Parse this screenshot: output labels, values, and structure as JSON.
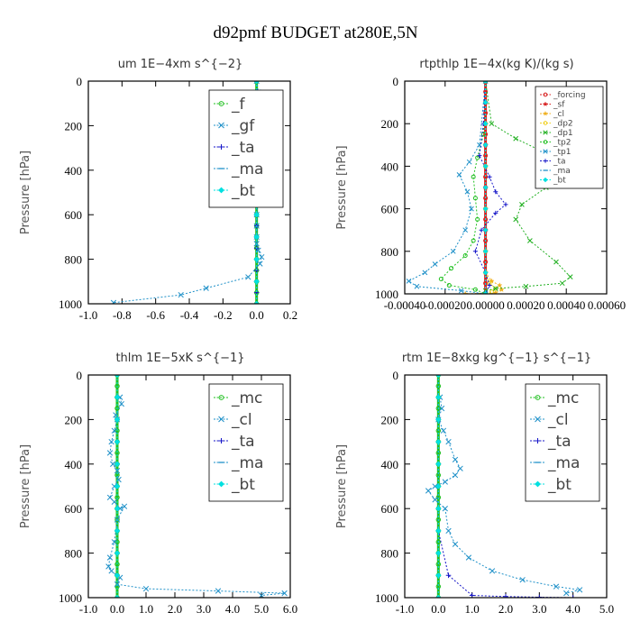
{
  "figure_title": "d92pmf  BUDGET at280E,5N",
  "chart_data": [
    {
      "type": "line",
      "title": "um   1E−4xm s^{−2}",
      "ylabel": "Pressure [hPa]",
      "xlim": [
        -1.0,
        0.2
      ],
      "ylim": [
        1000,
        0
      ],
      "xticks": [
        -1.0,
        -0.8,
        -0.6,
        -0.4,
        -0.2,
        0.0,
        0.2
      ],
      "xtick_labels": [
        "-1.0",
        "-0.8",
        "-0.6",
        "-0.4",
        "-0.2",
        "0.0",
        "0.2"
      ],
      "yticks": [
        0,
        200,
        400,
        600,
        800,
        1000
      ],
      "ytick_labels": [
        "0",
        "200",
        "400",
        "600",
        "800",
        "1000"
      ],
      "legend_position": "top-right",
      "legend_font_size": "large",
      "series": [
        {
          "name": "_f",
          "color": "#22c022",
          "marker": "circle",
          "x": [
            0,
            0,
            0,
            0,
            0,
            0,
            0,
            0,
            0,
            0,
            0,
            0,
            0,
            0,
            0,
            0,
            0,
            0,
            0,
            0,
            0
          ],
          "y": [
            0,
            50,
            100,
            150,
            200,
            250,
            300,
            350,
            400,
            450,
            500,
            550,
            600,
            650,
            700,
            750,
            800,
            850,
            900,
            950,
            1000
          ]
        },
        {
          "name": "_gf",
          "color": "#1e90c8",
          "marker": "x",
          "x": [
            0.0,
            0.01,
            0.02,
            0.05,
            0.07,
            0.03,
            0.02,
            0.01,
            0.01,
            0.01,
            0.0,
            0.0,
            0.0,
            0.0,
            0.01,
            0.03,
            0.02,
            -0.05,
            -0.3,
            -0.45,
            -0.85
          ],
          "y": [
            0,
            50,
            100,
            150,
            180,
            200,
            250,
            300,
            400,
            500,
            600,
            650,
            700,
            730,
            760,
            790,
            820,
            880,
            930,
            960,
            995
          ]
        },
        {
          "name": "_ta",
          "color": "#1515c8",
          "marker": "plus",
          "x": [
            0,
            0,
            0,
            0,
            0,
            0,
            0,
            0,
            0,
            0,
            0,
            0,
            0,
            0,
            0,
            0,
            0,
            0,
            0,
            0,
            0
          ],
          "y": [
            0,
            50,
            100,
            150,
            200,
            250,
            300,
            350,
            400,
            450,
            500,
            550,
            600,
            650,
            700,
            750,
            800,
            850,
            900,
            950,
            1000
          ]
        },
        {
          "name": "_ma",
          "color": "#1e90c8",
          "marker": "dash",
          "x": [
            0,
            0,
            0,
            0,
            0,
            0,
            0,
            0,
            0,
            0,
            0
          ],
          "y": [
            0,
            100,
            200,
            300,
            400,
            500,
            600,
            700,
            800,
            900,
            1000
          ]
        },
        {
          "name": "_bt",
          "color": "#00e0e0",
          "marker": "diamond",
          "x": [
            0,
            0,
            0,
            0,
            0,
            0,
            0,
            0,
            0,
            0,
            0
          ],
          "y": [
            0,
            100,
            200,
            300,
            400,
            500,
            600,
            700,
            800,
            900,
            1000
          ]
        }
      ]
    },
    {
      "type": "line",
      "title": "rtpthlp   1E−4x(kg K)/(kg s)",
      "ylabel": "Pressure [hPa]",
      "xlim": [
        -0.0004,
        0.0006
      ],
      "ylim": [
        1000,
        0
      ],
      "xticks": [
        -0.0004,
        -0.0002,
        0.0,
        0.0002,
        0.0004,
        0.0006
      ],
      "xtick_labels": [
        "-0.00040",
        "-0.00020",
        "0.00000",
        "0.00020",
        "0.00040",
        "0.00060"
      ],
      "yticks": [
        0,
        200,
        400,
        600,
        800,
        1000
      ],
      "ytick_labels": [
        "0",
        "200",
        "400",
        "600",
        "800",
        "1000"
      ],
      "legend_position": "top-right",
      "legend_font_size": "small",
      "series": [
        {
          "name": "_forcing",
          "color": "#d82020",
          "marker": "circle",
          "x": [
            0,
            0,
            0,
            0,
            0,
            0,
            0,
            0,
            0,
            0,
            0,
            0,
            0,
            0,
            0,
            0,
            0,
            0,
            0,
            0,
            0
          ],
          "y": [
            0,
            50,
            100,
            150,
            200,
            250,
            300,
            350,
            400,
            450,
            500,
            550,
            600,
            650,
            700,
            750,
            800,
            850,
            900,
            950,
            1000
          ]
        },
        {
          "name": "_sf",
          "color": "#d82020",
          "marker": "star",
          "x": [
            0,
            0,
            0,
            0,
            0,
            0,
            0,
            0,
            0,
            0,
            0
          ],
          "y": [
            0,
            100,
            200,
            300,
            400,
            500,
            600,
            700,
            800,
            900,
            1000
          ]
        },
        {
          "name": "_cl",
          "color": "#f0b020",
          "marker": "star",
          "x": [
            0,
            0,
            0,
            0,
            0,
            0,
            3e-05,
            7e-05,
            8e-05,
            5e-05,
            -0.0001
          ],
          "y": [
            0,
            200,
            400,
            600,
            800,
            900,
            940,
            960,
            980,
            995,
            1000
          ]
        },
        {
          "name": "_dp2",
          "color": "#f0d020",
          "marker": "circle",
          "x": [
            0,
            0,
            0,
            0,
            0,
            0,
            2e-05,
            5e-05,
            3e-05,
            0
          ],
          "y": [
            0,
            200,
            400,
            600,
            800,
            900,
            950,
            975,
            990,
            1000
          ]
        },
        {
          "name": "_dp1",
          "color": "#22b022",
          "marker": "x",
          "x": [
            0,
            3e-05,
            0.00015,
            0.00028,
            0.00036,
            0.00042,
            0.0003,
            0.00018,
            0.00015,
            0.00022,
            0.00035,
            0.00042,
            0.00038,
            0.0002,
            5e-05,
            0
          ],
          "y": [
            0,
            200,
            270,
            330,
            380,
            430,
            500,
            580,
            650,
            750,
            850,
            920,
            950,
            965,
            975,
            985
          ]
        },
        {
          "name": "_tp2",
          "color": "#22c022",
          "marker": "circle",
          "x": [
            0,
            -1e-05,
            -4e-05,
            -6e-05,
            -5e-05,
            -4e-05,
            -6e-05,
            -0.0001,
            -0.00017,
            -0.00022,
            -0.00018,
            -5e-05,
            0
          ],
          "y": [
            0,
            250,
            360,
            450,
            550,
            650,
            750,
            820,
            880,
            930,
            960,
            980,
            1000
          ]
        },
        {
          "name": "_tp1",
          "color": "#1e90c8",
          "marker": "x",
          "x": [
            0,
            -3e-05,
            -8e-05,
            -0.00013,
            -9e-05,
            -7e-05,
            -0.0001,
            -0.00016,
            -0.00025,
            -0.0003,
            -0.00038,
            -0.00034,
            -0.00012,
            0
          ],
          "y": [
            0,
            300,
            380,
            440,
            520,
            600,
            700,
            800,
            860,
            900,
            940,
            965,
            985,
            1000
          ]
        },
        {
          "name": "_ta",
          "color": "#1515c8",
          "marker": "plus",
          "x": [
            0,
            -1e-05,
            -3e-05,
            2e-05,
            5e-05,
            0.0001,
            5e-05,
            -2e-05,
            -5e-05,
            0,
            2e-05,
            0
          ],
          "y": [
            0,
            200,
            350,
            450,
            520,
            580,
            620,
            700,
            800,
            900,
            960,
            1000
          ]
        },
        {
          "name": "_ma",
          "color": "#1e90c8",
          "marker": "dash",
          "x": [
            0,
            0,
            0,
            0,
            0,
            0,
            0,
            0,
            0,
            0,
            0
          ],
          "y": [
            0,
            100,
            200,
            300,
            400,
            500,
            600,
            700,
            800,
            900,
            1000
          ]
        },
        {
          "name": "_bt",
          "color": "#00e0e0",
          "marker": "diamond",
          "x": [
            0,
            0,
            0,
            0,
            0,
            0,
            0,
            0,
            0,
            0,
            0
          ],
          "y": [
            0,
            100,
            200,
            300,
            400,
            500,
            600,
            700,
            800,
            900,
            1000
          ]
        }
      ]
    },
    {
      "type": "line",
      "title": "thlm   1E−5xK s^{−1}",
      "ylabel": "Pressure [hPa]",
      "xlim": [
        -1.0,
        6.0
      ],
      "ylim": [
        1000,
        0
      ],
      "xticks": [
        -1.0,
        0.0,
        1.0,
        2.0,
        3.0,
        4.0,
        5.0,
        6.0
      ],
      "xtick_labels": [
        "-1.0",
        "0.0",
        "1.0",
        "2.0",
        "3.0",
        "4.0",
        "5.0",
        "6.0"
      ],
      "yticks": [
        0,
        200,
        400,
        600,
        800,
        1000
      ],
      "ytick_labels": [
        "0",
        "200",
        "400",
        "600",
        "800",
        "1000"
      ],
      "legend_position": "top-right",
      "legend_font_size": "large",
      "series": [
        {
          "name": "_mc",
          "color": "#22c022",
          "marker": "circle",
          "x": [
            0,
            0,
            0,
            0,
            0,
            0,
            0,
            0,
            0,
            0,
            0,
            0,
            0,
            0,
            0,
            0,
            0,
            0,
            0,
            0,
            0
          ],
          "y": [
            0,
            50,
            100,
            150,
            200,
            250,
            300,
            350,
            400,
            450,
            500,
            550,
            600,
            650,
            700,
            750,
            800,
            850,
            900,
            950,
            1000
          ]
        },
        {
          "name": "_cl",
          "color": "#1e90c8",
          "marker": "x",
          "x": [
            0.1,
            0.15,
            -0.05,
            0.0,
            -0.1,
            -0.2,
            -0.25,
            -0.15,
            0.0,
            0.05,
            -0.1,
            -0.25,
            -0.1,
            0.1,
            0.25,
            0.0,
            -0.1,
            -0.25,
            -0.3,
            -0.2,
            0.1,
            0.0,
            1.0,
            3.5,
            5.8,
            5.0
          ],
          "y": [
            100,
            130,
            180,
            200,
            250,
            300,
            350,
            400,
            430,
            470,
            500,
            550,
            570,
            600,
            590,
            650,
            750,
            820,
            860,
            880,
            910,
            940,
            960,
            970,
            980,
            990
          ]
        },
        {
          "name": "_ta",
          "color": "#1515c8",
          "marker": "plus",
          "x": [
            0,
            0,
            0,
            0,
            0,
            0,
            0,
            0,
            0,
            0,
            0
          ],
          "y": [
            0,
            100,
            200,
            300,
            400,
            500,
            600,
            700,
            800,
            900,
            1000
          ]
        },
        {
          "name": "_ma",
          "color": "#1e90c8",
          "marker": "dash",
          "x": [
            0,
            0,
            0,
            0,
            0,
            0,
            0,
            0,
            0,
            0,
            0
          ],
          "y": [
            0,
            100,
            200,
            300,
            400,
            500,
            600,
            700,
            800,
            900,
            1000
          ]
        },
        {
          "name": "_bt",
          "color": "#00e0e0",
          "marker": "diamond",
          "x": [
            0,
            0,
            0,
            0,
            0,
            0,
            0,
            0,
            0,
            0,
            0
          ],
          "y": [
            0,
            100,
            200,
            300,
            400,
            500,
            600,
            700,
            800,
            900,
            1000
          ]
        }
      ]
    },
    {
      "type": "line",
      "title": "rtm   1E−8xkg kg^{−1} s^{−1}",
      "ylabel": "Pressure [hPa]",
      "xlim": [
        -1.0,
        5.0
      ],
      "ylim": [
        1000,
        0
      ],
      "xticks": [
        -1.0,
        0.0,
        1.0,
        2.0,
        3.0,
        4.0,
        5.0
      ],
      "xtick_labels": [
        "-1.0",
        "0.0",
        "1.0",
        "2.0",
        "3.0",
        "4.0",
        "5.0"
      ],
      "yticks": [
        0,
        200,
        400,
        600,
        800,
        1000
      ],
      "ytick_labels": [
        "0",
        "200",
        "400",
        "600",
        "800",
        "1000"
      ],
      "legend_position": "top-right",
      "legend_font_size": "large",
      "series": [
        {
          "name": "_mc",
          "color": "#22c022",
          "marker": "circle",
          "x": [
            0,
            0,
            0,
            0,
            0,
            0,
            0,
            0,
            0,
            0,
            0,
            0,
            0,
            0,
            0,
            0,
            0,
            0,
            0,
            0,
            0
          ],
          "y": [
            0,
            50,
            100,
            150,
            200,
            250,
            300,
            350,
            400,
            450,
            500,
            550,
            600,
            650,
            700,
            750,
            800,
            850,
            900,
            950,
            1000
          ]
        },
        {
          "name": "_cl",
          "color": "#1e90c8",
          "marker": "x",
          "x": [
            0.05,
            0.1,
            0.0,
            0.15,
            0.3,
            0.5,
            0.65,
            0.5,
            0.2,
            -0.1,
            -0.3,
            -0.1,
            0.2,
            0.3,
            0.5,
            0.9,
            1.6,
            2.5,
            3.5,
            4.2,
            3.8
          ],
          "y": [
            100,
            150,
            200,
            250,
            300,
            380,
            420,
            450,
            480,
            500,
            520,
            560,
            600,
            700,
            760,
            820,
            880,
            920,
            950,
            965,
            980
          ]
        },
        {
          "name": "_ta",
          "color": "#1515c8",
          "marker": "plus",
          "x": [
            0,
            0,
            0,
            0,
            0,
            0,
            0,
            0,
            0.3,
            1.0,
            2.0,
            3.0,
            4.0
          ],
          "y": [
            0,
            100,
            200,
            300,
            400,
            500,
            600,
            700,
            900,
            990,
            995,
            998,
            1000
          ]
        },
        {
          "name": "_ma",
          "color": "#1e90c8",
          "marker": "dash",
          "x": [
            0,
            0,
            0,
            0,
            0,
            0,
            0,
            0,
            0,
            0,
            0
          ],
          "y": [
            0,
            100,
            200,
            300,
            400,
            500,
            600,
            700,
            800,
            900,
            1000
          ]
        },
        {
          "name": "_bt",
          "color": "#00e0e0",
          "marker": "diamond",
          "x": [
            0,
            0,
            0,
            0,
            0,
            0,
            0,
            0,
            0,
            0,
            0
          ],
          "y": [
            0,
            100,
            200,
            300,
            400,
            500,
            600,
            700,
            800,
            900,
            1000
          ]
        }
      ]
    }
  ]
}
